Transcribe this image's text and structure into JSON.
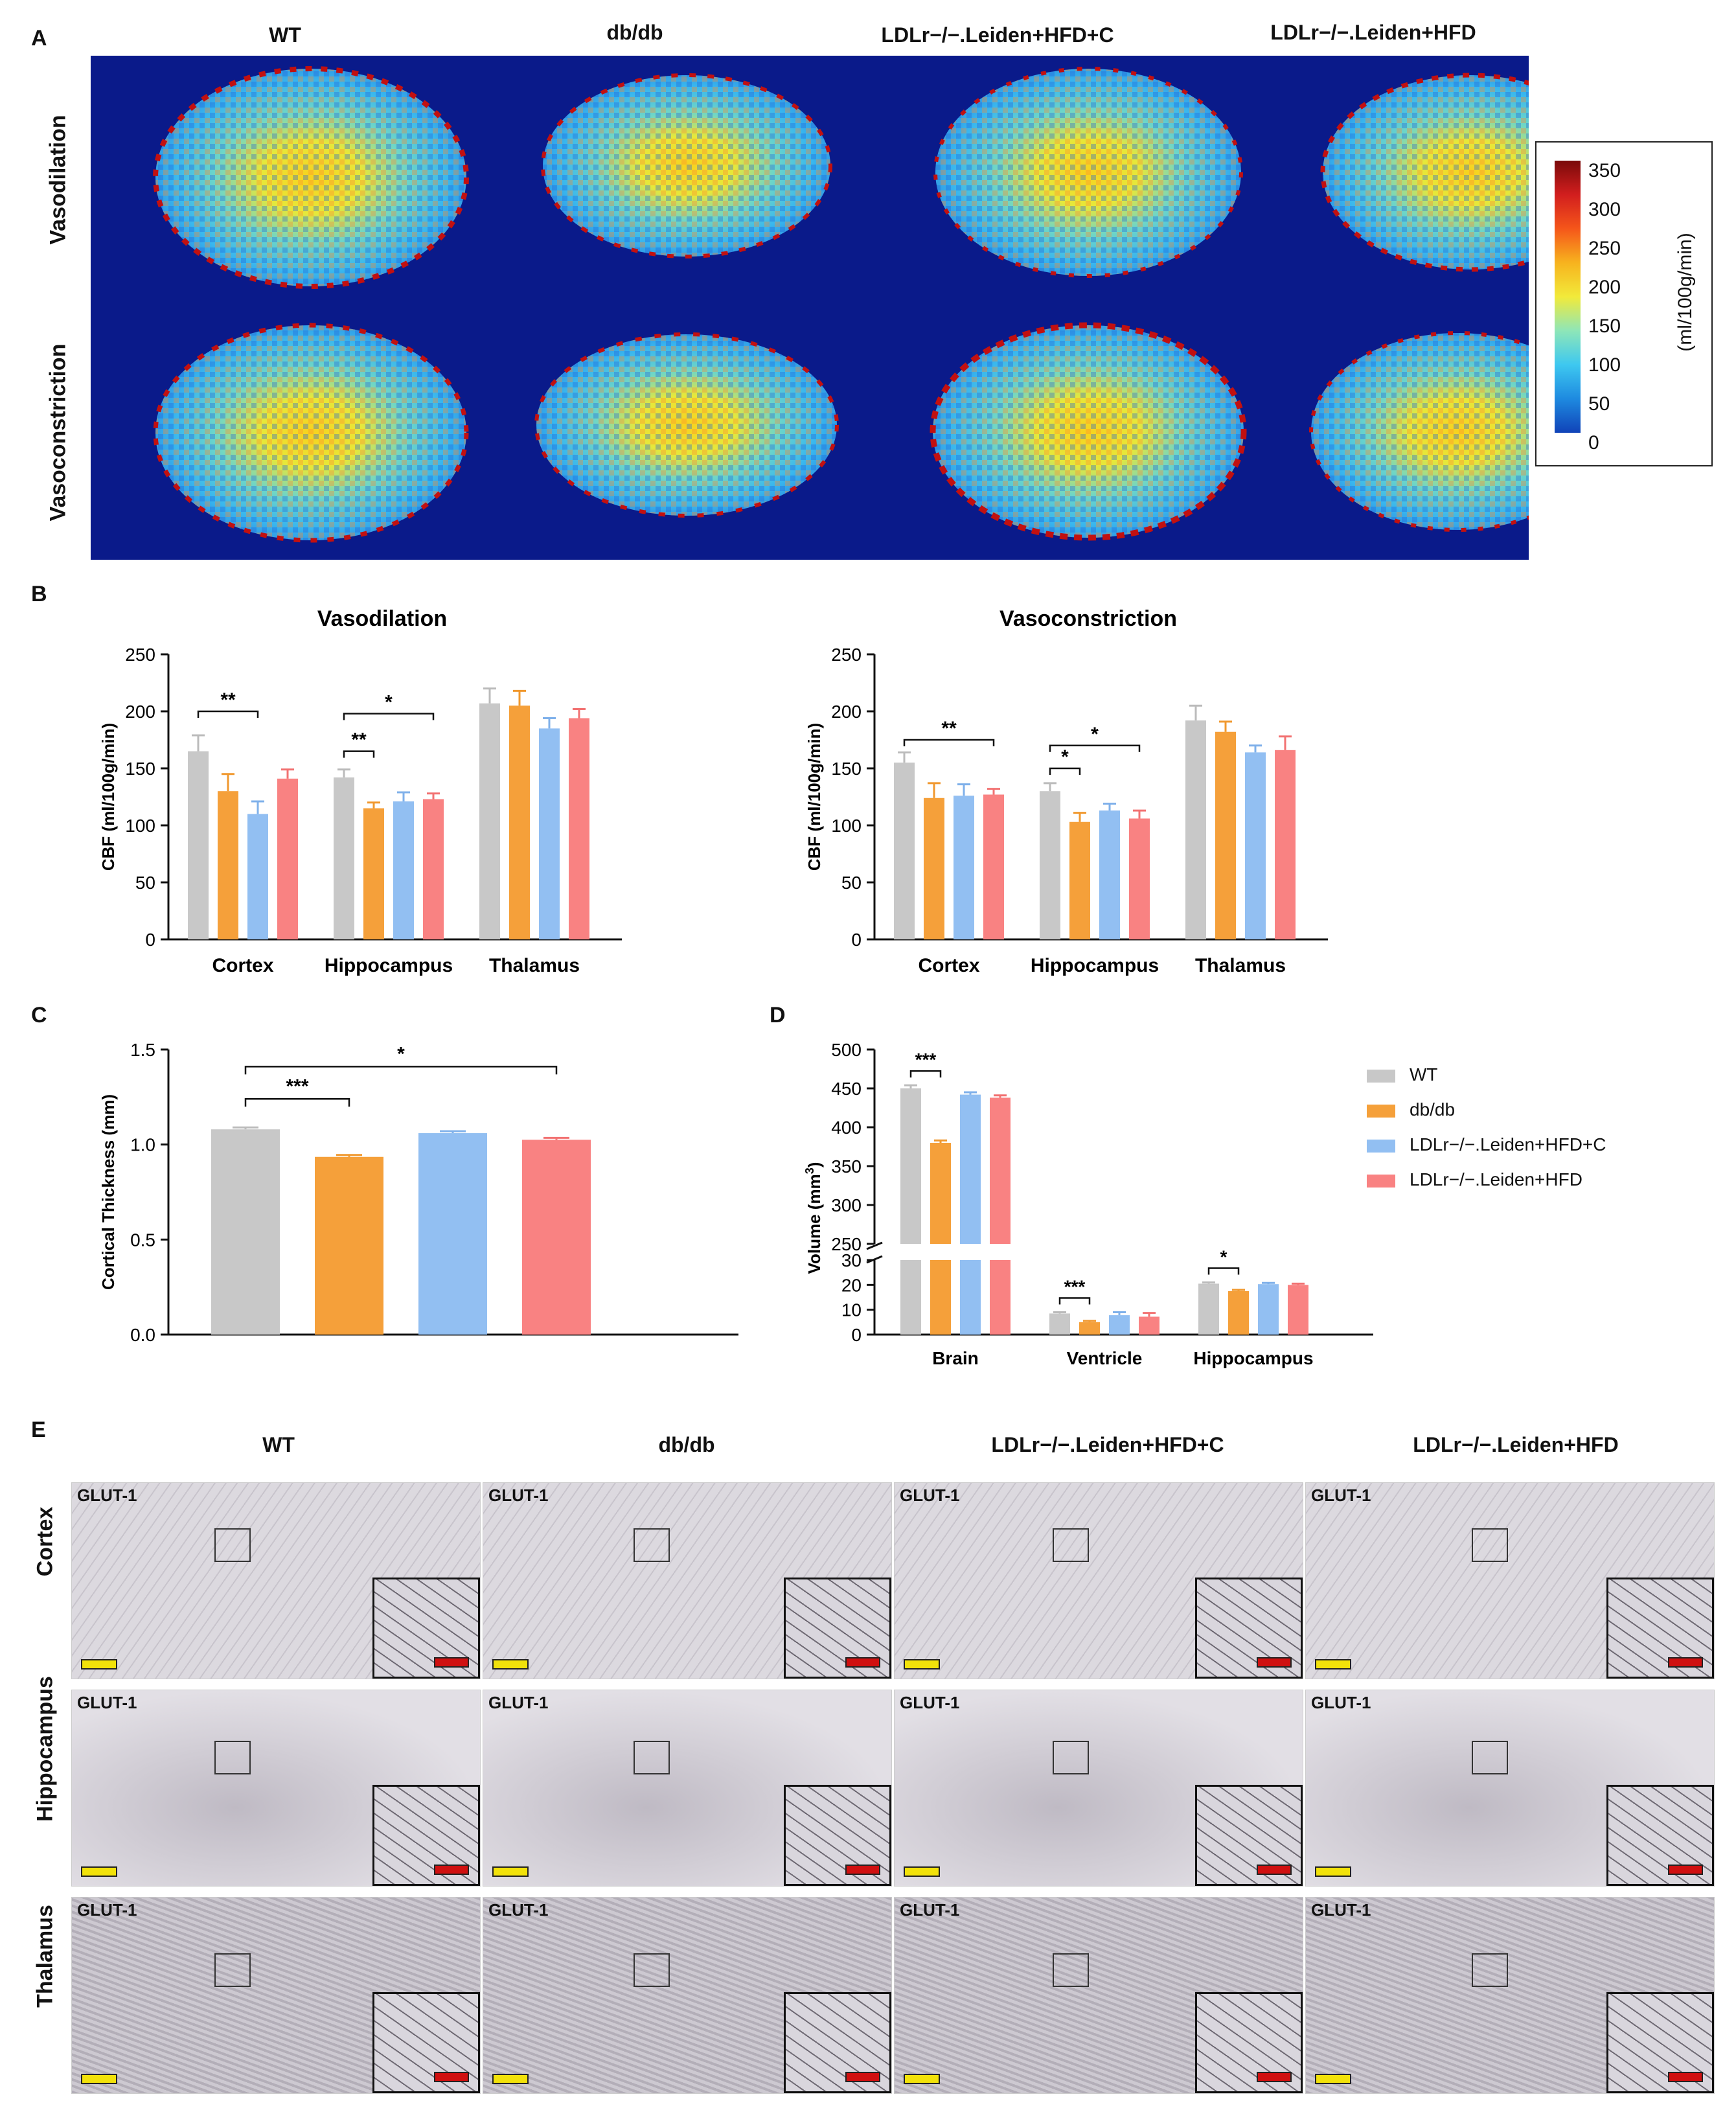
{
  "panel_labels": {
    "A": "A",
    "B": "B",
    "C": "C",
    "D": "D",
    "E": "E"
  },
  "groups": [
    "WT",
    "db/db",
    "LDLr−/−.Leiden+HFD+C",
    "LDLr−/−.Leiden+HFD"
  ],
  "colors": {
    "WT": "#c8c8c8",
    "dbdb": "#f5a03a",
    "HFDC": "#92bff2",
    "HFD": "#f98282",
    "map_bg": "#0a1a8a"
  },
  "panelA": {
    "row_labels": [
      "Vasodilation",
      "Vasoconstriction"
    ],
    "colorbar": {
      "label": "(ml/100g/min)",
      "ticks": [
        "350",
        "300",
        "250",
        "200",
        "150",
        "100",
        "50",
        "0"
      ]
    }
  },
  "panelE": {
    "row_labels": [
      "Cortex",
      "Hippocampus",
      "Thalamus"
    ],
    "stain_label": "GLUT-1"
  },
  "chart_data": [
    {
      "id": "B-left",
      "type": "bar",
      "title": "Vasodilation",
      "ylabel": "CBF (ml/100g/min)",
      "ylim": [
        0,
        250
      ],
      "yticks": [
        0,
        50,
        100,
        150,
        200,
        250
      ],
      "categories": [
        "Cortex",
        "Hippocampus",
        "Thalamus"
      ],
      "series": [
        {
          "name": "WT",
          "values": [
            165,
            142,
            207
          ],
          "errors": [
            14,
            7,
            13
          ]
        },
        {
          "name": "db/db",
          "values": [
            130,
            115,
            205
          ],
          "errors": [
            15,
            5,
            13
          ]
        },
        {
          "name": "LDLr−/−.Leiden+HFD+C",
          "values": [
            110,
            121,
            185
          ],
          "errors": [
            11,
            8,
            9
          ]
        },
        {
          "name": "LDLr−/−.Leiden+HFD",
          "values": [
            141,
            123,
            194
          ],
          "errors": [
            8,
            5,
            8
          ]
        }
      ],
      "significance": [
        {
          "category": 0,
          "from": 0,
          "to": 2,
          "label": "**",
          "y": 200
        },
        {
          "category": 1,
          "from": 0,
          "to": 3,
          "label": "*",
          "y": 198
        },
        {
          "category": 1,
          "from": 0,
          "to": 1,
          "label": "**",
          "y": 165
        }
      ]
    },
    {
      "id": "B-right",
      "type": "bar",
      "title": "Vasoconstriction",
      "ylabel": "CBF (ml/100g/min)",
      "ylim": [
        0,
        250
      ],
      "yticks": [
        0,
        50,
        100,
        150,
        200,
        250
      ],
      "categories": [
        "Cortex",
        "Hippocampus",
        "Thalamus"
      ],
      "series": [
        {
          "name": "WT",
          "values": [
            155,
            130,
            192
          ],
          "errors": [
            9,
            7,
            13
          ]
        },
        {
          "name": "db/db",
          "values": [
            124,
            103,
            182
          ],
          "errors": [
            13,
            8,
            9
          ]
        },
        {
          "name": "LDLr−/−.Leiden+HFD+C",
          "values": [
            126,
            113,
            164
          ],
          "errors": [
            10,
            6,
            6
          ]
        },
        {
          "name": "LDLr−/−.Leiden+HFD",
          "values": [
            127,
            106,
            166
          ],
          "errors": [
            5,
            7,
            12
          ]
        }
      ],
      "significance": [
        {
          "category": 0,
          "from": 0,
          "to": 3,
          "label": "**",
          "y": 175
        },
        {
          "category": 1,
          "from": 0,
          "to": 3,
          "label": "*",
          "y": 170
        },
        {
          "category": 1,
          "from": 0,
          "to": 1,
          "label": "*",
          "y": 150
        }
      ]
    },
    {
      "id": "C",
      "type": "bar",
      "ylabel": "Cortical Thickness (mm)",
      "ylim": [
        0,
        1.5
      ],
      "yticks": [
        "0.0",
        "0.5",
        "1.0",
        "1.5"
      ],
      "categories": [
        "WT",
        "db/db",
        "LDLr−/−.Leiden+HFD+C",
        "LDLr−/−.Leiden+HFD"
      ],
      "values": [
        1.08,
        0.935,
        1.06,
        1.025
      ],
      "errors": [
        0.01,
        0.01,
        0.01,
        0.01
      ],
      "significance": [
        {
          "from": 0,
          "to": 1,
          "label": "***",
          "y": 1.24
        },
        {
          "from": 0,
          "to": 3,
          "label": "*",
          "y": 1.41
        }
      ]
    },
    {
      "id": "D",
      "type": "bar",
      "ylabel": "Volume (mm³)",
      "ylabel_main": "Volume (mm",
      "ylabel_sup": "3",
      "ylabel_end": ")",
      "axis_break": {
        "lower": [
          0,
          30
        ],
        "upper": [
          250,
          500
        ]
      },
      "yticks_lower": [
        0,
        10,
        20,
        30
      ],
      "yticks_upper": [
        250,
        300,
        350,
        400,
        450,
        500
      ],
      "categories": [
        "Brain",
        "Ventricle",
        "Hippocampus"
      ],
      "series": [
        {
          "name": "WT",
          "values": [
            450,
            8.5,
            20.5
          ],
          "errors": [
            4,
            0.5,
            0.5
          ]
        },
        {
          "name": "db/db",
          "values": [
            380,
            5,
            17.5
          ],
          "errors": [
            3,
            0.5,
            0.5
          ]
        },
        {
          "name": "LDLr−/−.Leiden+HFD+C",
          "values": [
            442,
            7.8,
            20.3
          ],
          "errors": [
            3,
            1.2,
            0.5
          ]
        },
        {
          "name": "LDLr−/−.Leiden+HFD",
          "values": [
            438,
            7.2,
            20
          ],
          "errors": [
            3,
            1.5,
            0.5
          ]
        }
      ],
      "significance": [
        {
          "category": 0,
          "from": 0,
          "to": 1,
          "label": "***"
        },
        {
          "category": 1,
          "from": 0,
          "to": 1,
          "label": "***"
        },
        {
          "category": 2,
          "from": 0,
          "to": 1,
          "label": "*"
        }
      ],
      "legend": [
        "WT",
        "db/db",
        "LDLr−/−.Leiden+HFD+C",
        "LDLr−/−.Leiden+HFD"
      ]
    }
  ]
}
